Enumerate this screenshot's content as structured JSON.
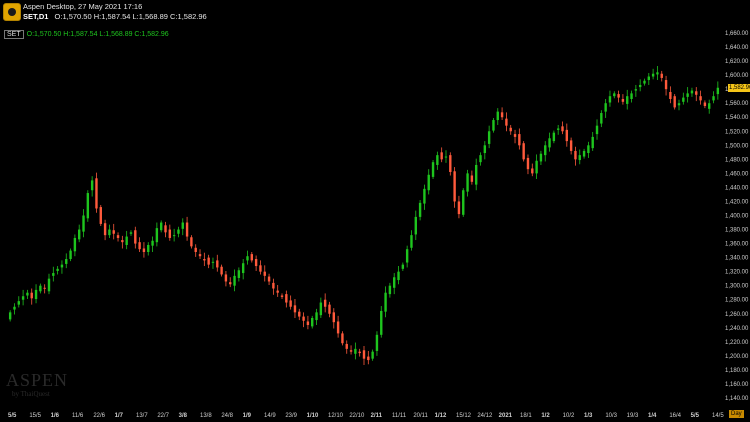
{
  "header": {
    "title": "Aspen Desktop, 27 May 2021 17:16",
    "symbol": "SET,D1",
    "ohlc": "O:1,570.50 H:1,587.54 L:1,568.89 C:1,582.96"
  },
  "legend": {
    "tag": "SET",
    "ohlc": "O:1,570.50 H:1,587.54 L:1,568.89 C:1,582.96"
  },
  "watermark": {
    "brand": "ASPEN",
    "by": "by ThaiQuest"
  },
  "price_label": "1,582.96",
  "day_label": "Day",
  "colors": {
    "up": "#1ec51e",
    "down": "#ff5a3c",
    "background": "#000000",
    "price_tag": "#f5c518"
  },
  "chart_data": {
    "type": "candlestick",
    "title": "",
    "ylim": [
      1130,
      1670
    ],
    "y_ticks": [
      "1,140.00",
      "1,160.00",
      "1,180.00",
      "1,200.00",
      "1,220.00",
      "1,240.00",
      "1,260.00",
      "1,280.00",
      "1,300.00",
      "1,320.00",
      "1,340.00",
      "1,360.00",
      "1,380.00",
      "1,400.00",
      "1,420.00",
      "1,440.00",
      "1,460.00",
      "1,480.00",
      "1,500.00",
      "1,520.00",
      "1,540.00",
      "1,560.00",
      "1,580.00",
      "1,600.00",
      "1,620.00",
      "1,640.00",
      "1,660.00"
    ],
    "x_ticks": [
      "5/5",
      "15/5",
      "1/6",
      "11/6",
      "22/6",
      "1/7",
      "13/7",
      "22/7",
      "3/8",
      "13/8",
      "24/8",
      "1/9",
      "14/9",
      "23/9",
      "1/10",
      "12/10",
      "22/10",
      "2/11",
      "11/11",
      "20/11",
      "1/12",
      "15/12",
      "24/12",
      "2021",
      "18/1",
      "1/2",
      "10/2",
      "1/3",
      "10/3",
      "19/3",
      "1/4",
      "16/4",
      "5/5",
      "14/5"
    ],
    "x_tick_bold": [
      true,
      false,
      true,
      false,
      false,
      true,
      false,
      false,
      true,
      false,
      false,
      true,
      false,
      false,
      true,
      false,
      false,
      true,
      false,
      false,
      true,
      false,
      false,
      true,
      false,
      true,
      false,
      true,
      false,
      false,
      true,
      false,
      true,
      false
    ],
    "closes": [
      1262,
      1270,
      1278,
      1285,
      1290,
      1282,
      1294,
      1300,
      1296,
      1310,
      1318,
      1324,
      1330,
      1338,
      1350,
      1368,
      1380,
      1400,
      1432,
      1450,
      1410,
      1388,
      1372,
      1380,
      1374,
      1368,
      1362,
      1370,
      1376,
      1360,
      1352,
      1348,
      1358,
      1364,
      1382,
      1390,
      1376,
      1368,
      1372,
      1380,
      1390,
      1370,
      1356,
      1348,
      1342,
      1336,
      1330,
      1334,
      1326,
      1316,
      1306,
      1302,
      1314,
      1322,
      1332,
      1342,
      1336,
      1328,
      1320,
      1314,
      1306,
      1296,
      1290,
      1284,
      1276,
      1270,
      1262,
      1256,
      1250,
      1244,
      1254,
      1262,
      1276,
      1270,
      1260,
      1248,
      1232,
      1218,
      1210,
      1206,
      1210,
      1204,
      1196,
      1194,
      1206,
      1230,
      1264,
      1290,
      1300,
      1312,
      1320,
      1330,
      1352,
      1372,
      1398,
      1418,
      1438,
      1458,
      1476,
      1486,
      1480,
      1484,
      1462,
      1420,
      1402,
      1436,
      1460,
      1448,
      1472,
      1486,
      1500,
      1520,
      1536,
      1548,
      1540,
      1528,
      1520,
      1512,
      1500,
      1480,
      1466,
      1460,
      1478,
      1488,
      1500,
      1510,
      1518,
      1524,
      1520,
      1506,
      1492,
      1480,
      1486,
      1492,
      1500,
      1512,
      1528,
      1546,
      1560,
      1570,
      1574,
      1568,
      1562,
      1570,
      1574,
      1580,
      1586,
      1592,
      1598,
      1602,
      1604,
      1596,
      1580,
      1566,
      1554,
      1560,
      1568,
      1574,
      1578,
      1572,
      1564,
      1556,
      1560,
      1570,
      1582
    ],
    "last_close": 1582.96
  }
}
